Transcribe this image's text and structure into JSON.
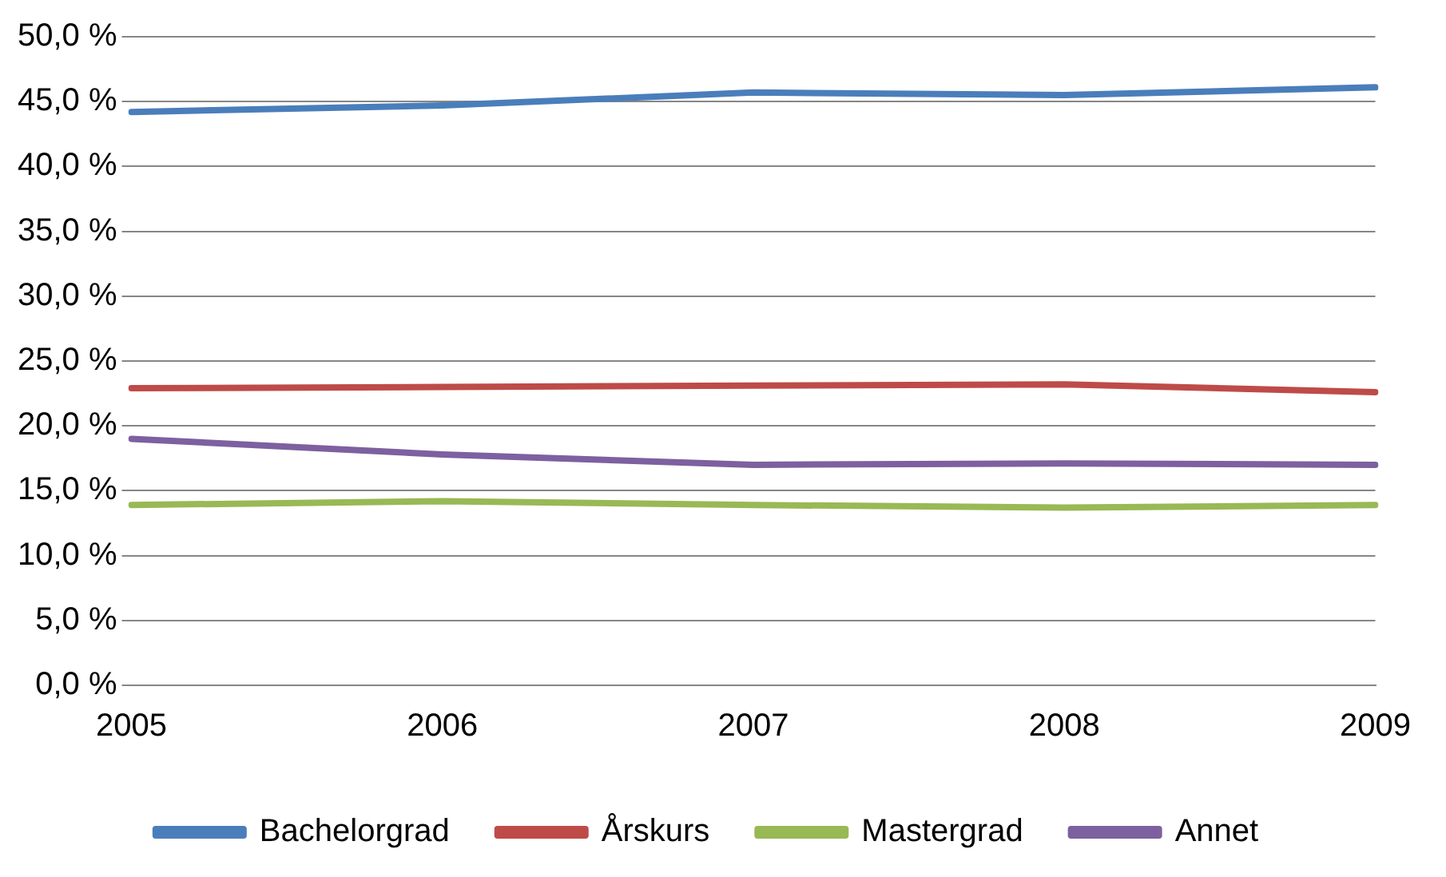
{
  "chart_data": {
    "type": "line",
    "categories": [
      "2005",
      "2006",
      "2007",
      "2008",
      "2009"
    ],
    "series": [
      {
        "name": "Bachelorgrad",
        "color": "#4a7ebb",
        "values": [
          44.2,
          44.7,
          45.7,
          45.5,
          46.1
        ]
      },
      {
        "name": "Årskurs",
        "color": "#be4b48",
        "values": [
          22.9,
          23.0,
          23.1,
          23.2,
          22.6
        ]
      },
      {
        "name": "Mastergrad",
        "color": "#98b954",
        "values": [
          13.9,
          14.2,
          13.9,
          13.7,
          13.9
        ]
      },
      {
        "name": "Annet",
        "color": "#7d60a0",
        "values": [
          19.0,
          17.8,
          17.0,
          17.1,
          17.0
        ]
      }
    ],
    "ylim": [
      0,
      50
    ],
    "yticks": [
      {
        "value": 0,
        "label": "0,0 %"
      },
      {
        "value": 5,
        "label": "5,0 %"
      },
      {
        "value": 10,
        "label": "10,0 %"
      },
      {
        "value": 15,
        "label": "15,0 %"
      },
      {
        "value": 20,
        "label": "20,0 %"
      },
      {
        "value": 25,
        "label": "25,0 %"
      },
      {
        "value": 30,
        "label": "30,0 %"
      },
      {
        "value": 35,
        "label": "35,0 %"
      },
      {
        "value": 40,
        "label": "40,0 %"
      },
      {
        "value": 45,
        "label": "45,0 %"
      },
      {
        "value": 50,
        "label": "50,0 %"
      }
    ],
    "grid": "y",
    "legend": "bottom",
    "marker": "none",
    "line_style": "solid"
  }
}
